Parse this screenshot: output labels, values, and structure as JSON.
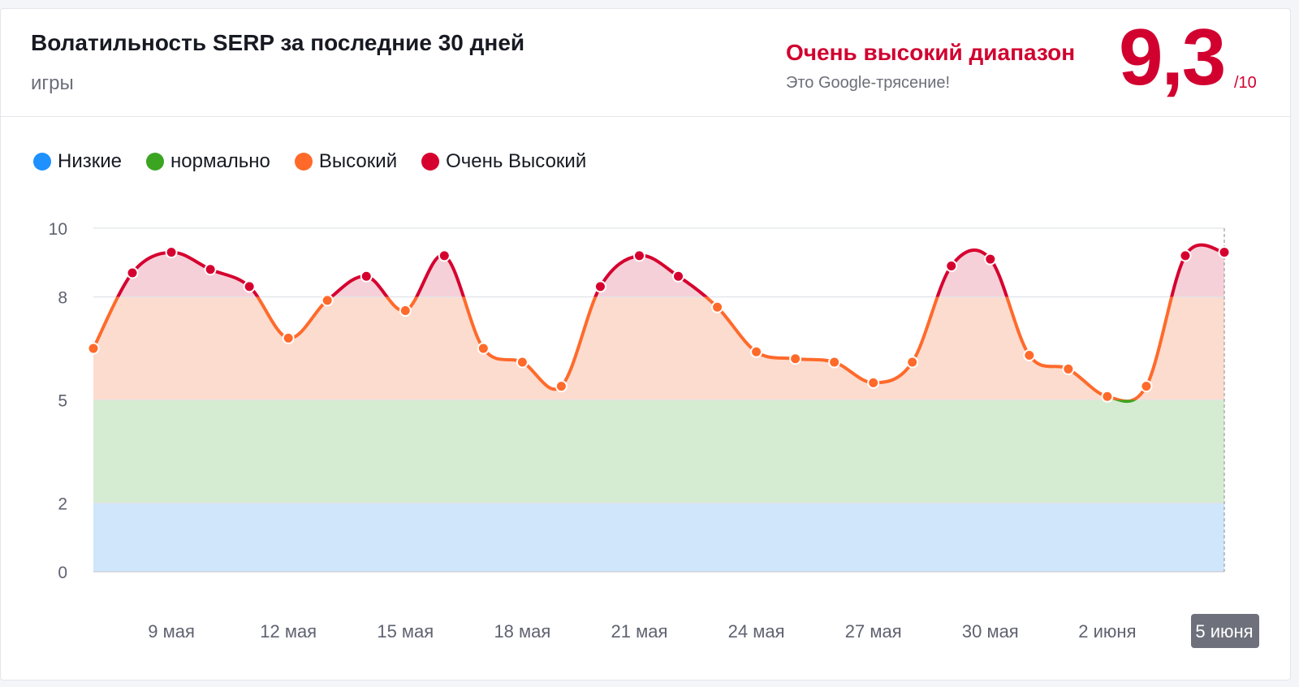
{
  "header": {
    "title": "Волатильность SERP за последние 30 дней",
    "subtitle": "игры",
    "range_label": "Очень высокий диапазон",
    "range_sub": "Это Google-трясение!",
    "score": "9,3",
    "score_max": "/10"
  },
  "colors": {
    "low": "#1e90ff",
    "normal": "#3ba522",
    "high": "#ff6a2b",
    "very_high": "#d6002f",
    "band_low": "#cfe6fb",
    "band_normal": "#d6ecd2",
    "band_high": "#fcdccf",
    "band_very_high": "#f6d0d8"
  },
  "chart_data": {
    "type": "line",
    "title": "Волатильность SERP за последние 30 дней",
    "xlabel": "",
    "ylabel": "",
    "ylim": [
      0,
      10
    ],
    "yticks": [
      0,
      2,
      5,
      8,
      10
    ],
    "grid": true,
    "legend_position": "top-left",
    "legend": [
      {
        "name": "Низкие",
        "range": [
          0,
          2
        ],
        "color": "#1e90ff"
      },
      {
        "name": "нормально",
        "range": [
          2,
          5
        ],
        "color": "#3ba522"
      },
      {
        "name": "Высокий",
        "range": [
          5,
          8
        ],
        "color": "#ff6a2b"
      },
      {
        "name": "Очень Высокий",
        "range": [
          8,
          10
        ],
        "color": "#d6002f"
      }
    ],
    "x_tick_labels": [
      {
        "day": 2,
        "label": "9 мая"
      },
      {
        "day": 5,
        "label": "12 мая"
      },
      {
        "day": 8,
        "label": "15 мая"
      },
      {
        "day": 11,
        "label": "18 мая"
      },
      {
        "day": 14,
        "label": "21 мая"
      },
      {
        "day": 17,
        "label": "24 мая"
      },
      {
        "day": 20,
        "label": "27 мая"
      },
      {
        "day": 23,
        "label": "30 мая"
      },
      {
        "day": 26,
        "label": "2 июня"
      },
      {
        "day": 29,
        "label": "5 июня",
        "highlight": true
      }
    ],
    "series": [
      {
        "values": [
          6.5,
          8.7,
          9.3,
          8.8,
          8.3,
          6.8,
          7.9,
          8.6,
          7.6,
          9.2,
          6.5,
          6.1,
          5.4,
          8.3,
          9.2,
          8.6,
          7.7,
          6.4,
          6.2,
          6.1,
          5.5,
          6.1,
          8.9,
          9.1,
          6.3,
          5.9,
          5.1,
          5.4,
          9.2,
          9.3
        ]
      }
    ]
  }
}
